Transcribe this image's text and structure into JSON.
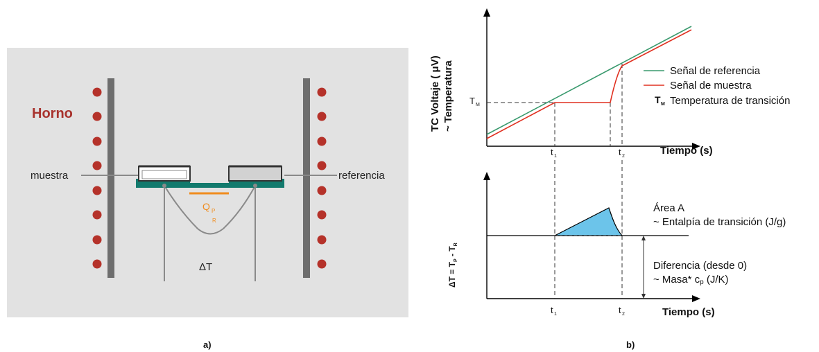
{
  "panel_a": {
    "caption": "a)",
    "furnace_label": "Horno",
    "sample_label": "muestra",
    "reference_label": "referencia",
    "heat_flow_label": "Q",
    "heat_flow_sub_top": "P",
    "heat_flow_sub_bottom": "R",
    "delta_t_label": "ΔT"
  },
  "panel_b": {
    "caption": "b)",
    "top_chart": {
      "ylabel_line1": "TC Voltaje ( μV)",
      "ylabel_line2": "~ Temperatura",
      "xlabel": "Tiempo (s)",
      "tm_label": "T",
      "tm_sub": "M",
      "t1_label": "t",
      "t1_sub": "1",
      "t2_label": "t",
      "t2_sub": "2",
      "legend": {
        "reference": "Señal de referencia",
        "sample": "Señal de muestra",
        "tm_prefix": "T",
        "tm_prefix_sub": "M",
        "tm_text": "Temperatura de transición"
      }
    },
    "bottom_chart": {
      "ylabel": "ΔT = T",
      "ylabel_sub1": "P",
      "ylabel_mid": " - T",
      "ylabel_sub2": "R",
      "xlabel": "Tiempo (s)",
      "t1_label": "t",
      "t1_sub": "1",
      "t2_label": "t",
      "t2_sub": "2",
      "area_title": "Área A",
      "area_desc": "~ Entalpía de transición (J/g)",
      "diff_title": "Diferencia (desde 0)",
      "diff_desc": "~ Masa* c",
      "diff_desc_sub": "p",
      "diff_desc_unit": " (J/K)"
    }
  },
  "colors": {
    "reference_line": "#3a9a6e",
    "sample_line": "#e03020",
    "furnace_text": "#a8322d",
    "heater_dot": "#b5322a",
    "panel_bg": "#e2e2e2",
    "wall": "#6e6e6e",
    "holder": "#127a6d",
    "heat_flow": "#f08c1e",
    "area_fill": "#6cc4ea"
  }
}
